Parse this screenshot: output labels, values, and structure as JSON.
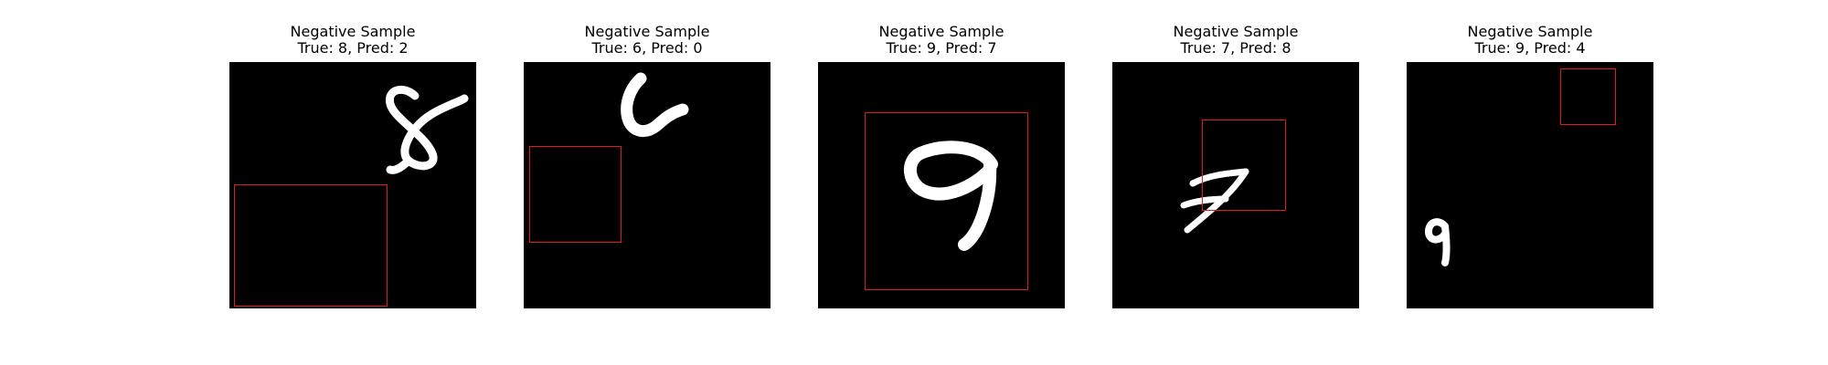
{
  "panels": [
    {
      "title": "Negative Sample",
      "subtitle": "True: 8, Pred: 2",
      "digit": "8"
    },
    {
      "title": "Negative Sample",
      "subtitle": "True: 6, Pred: 0",
      "digit": "6"
    },
    {
      "title": "Negative Sample",
      "subtitle": "True: 9, Pred: 7",
      "digit": "9"
    },
    {
      "title": "Negative Sample",
      "subtitle": "True: 7, Pred: 8",
      "digit": "7"
    },
    {
      "title": "Negative Sample",
      "subtitle": "True: 9, Pred: 4",
      "digit": "9"
    }
  ],
  "colors": {
    "background": "#000000",
    "digit": "#ffffff",
    "box": "#e31a1c"
  }
}
